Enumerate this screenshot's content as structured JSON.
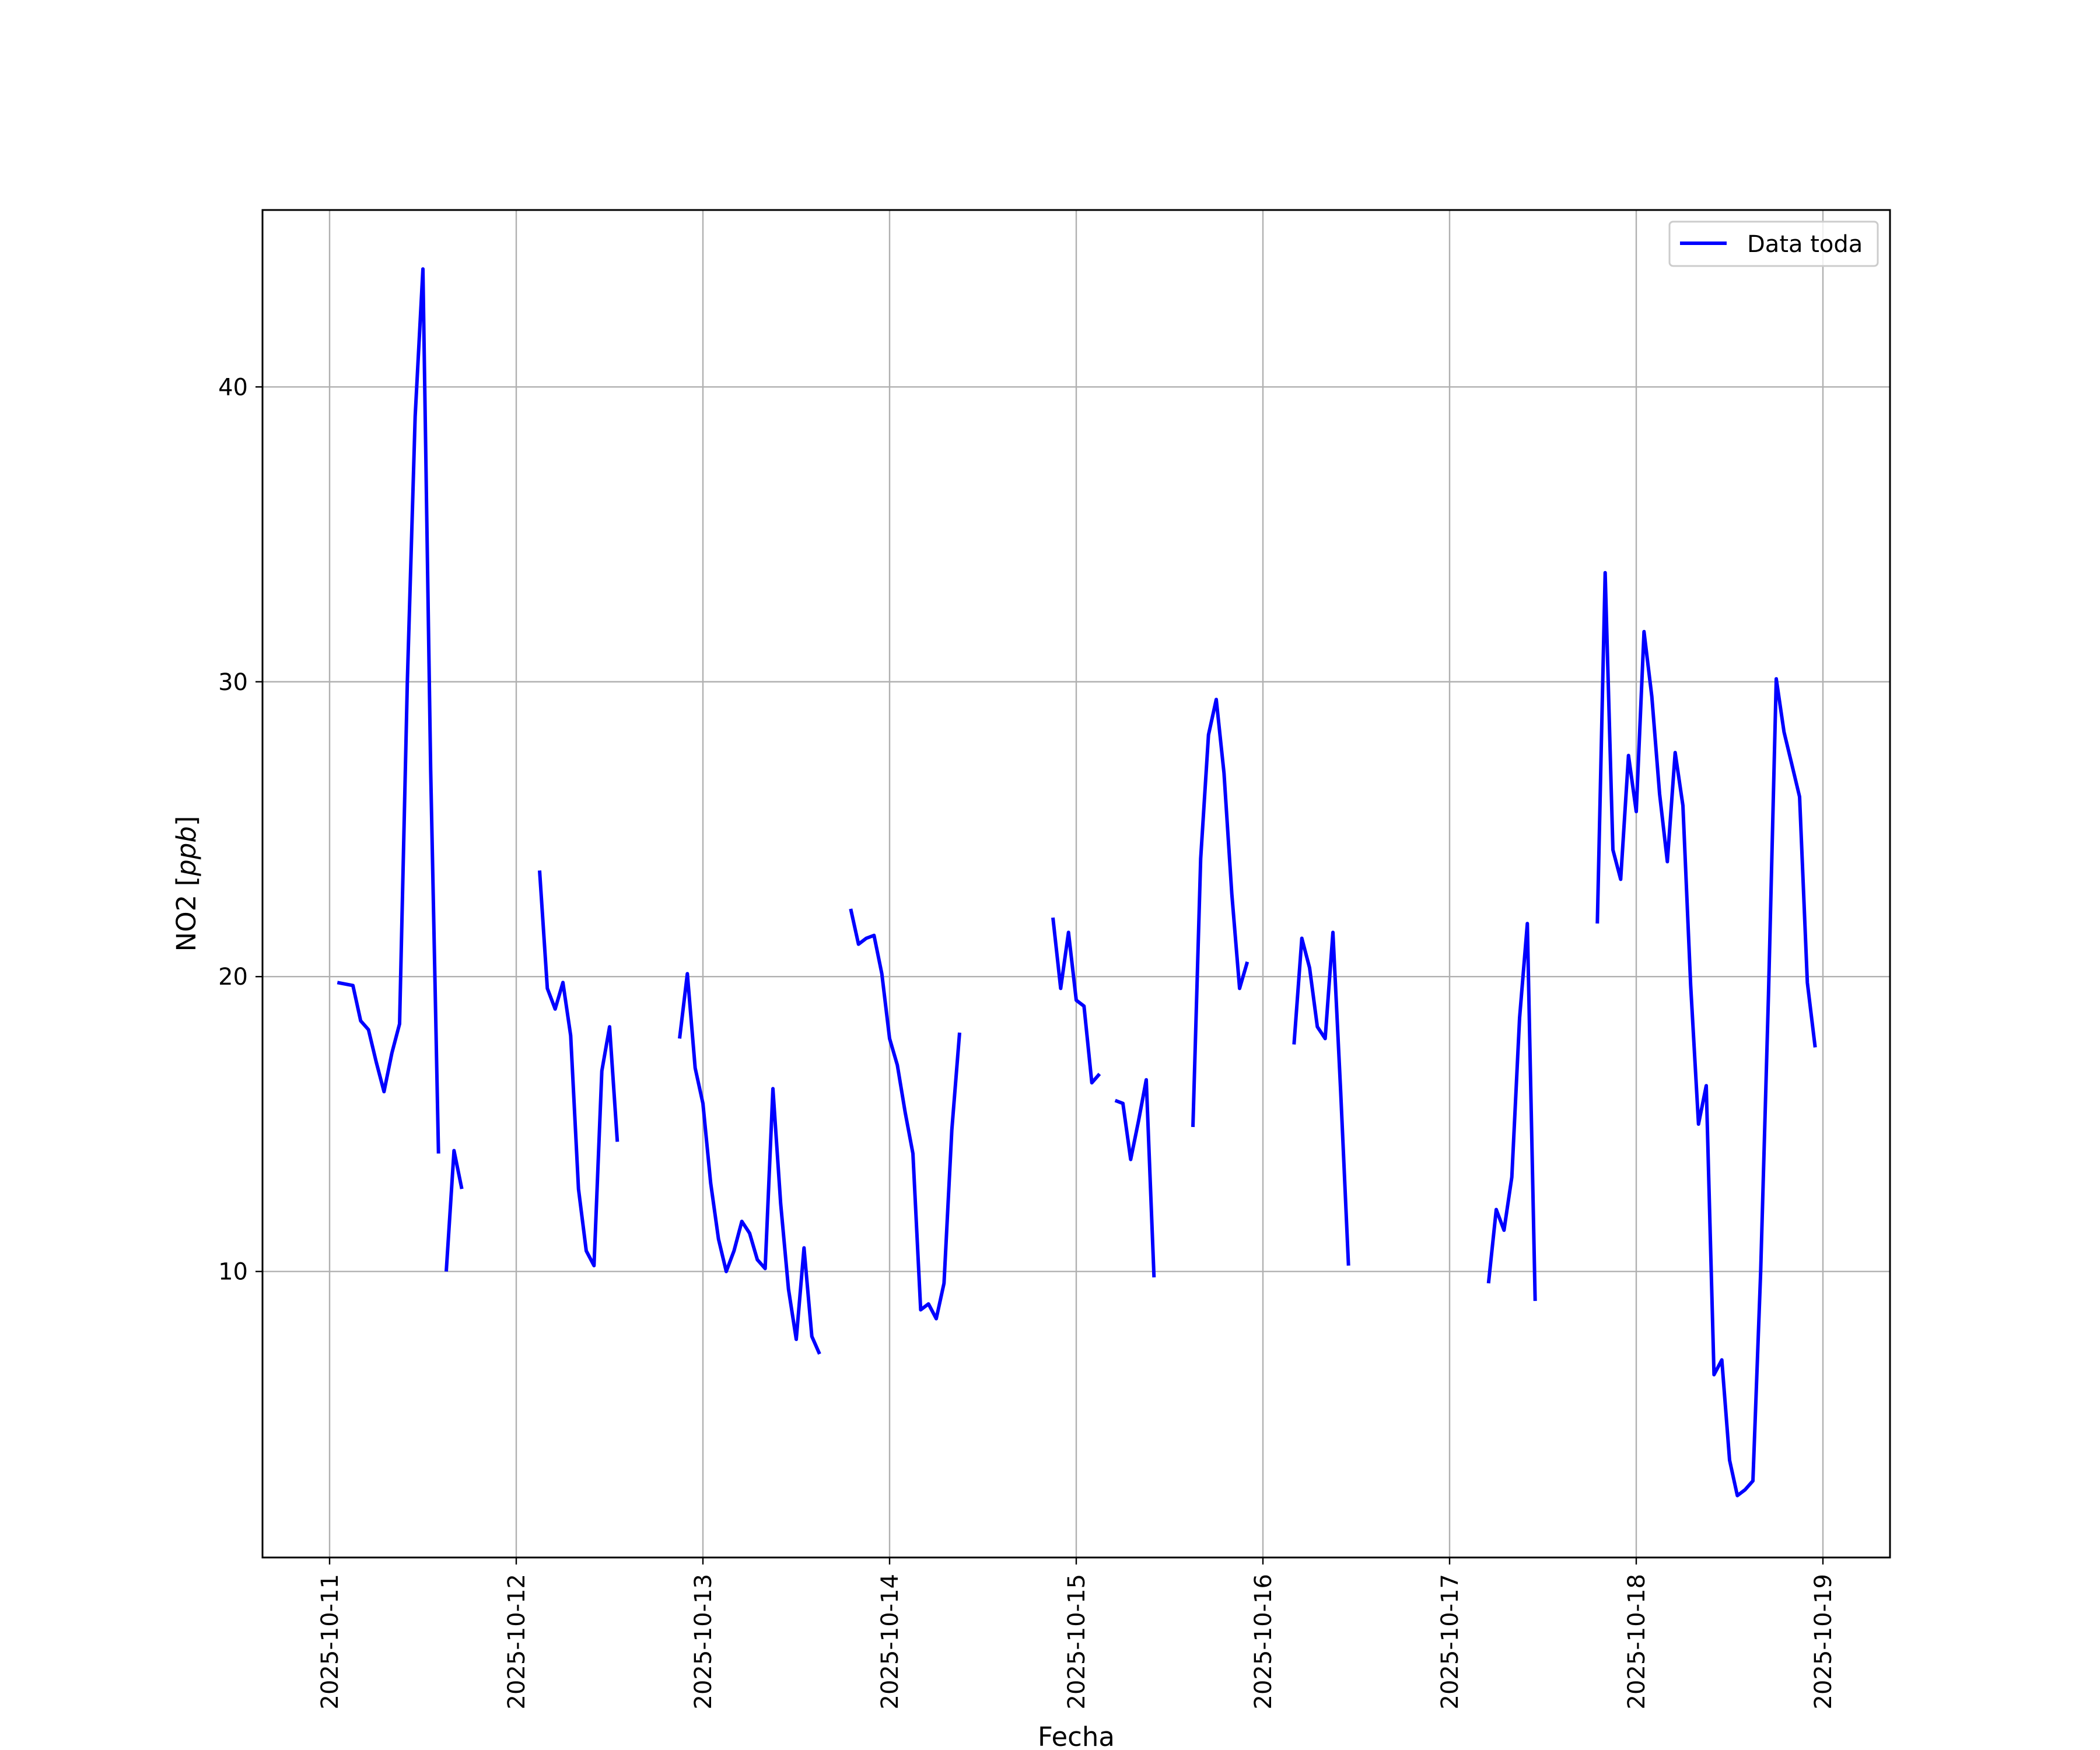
{
  "chart_data": {
    "type": "line",
    "title": "",
    "xlabel": "Fecha",
    "ylabel_text": "NO2 [",
    "ylabel_unit": "ppb",
    "ylabel_close": "]",
    "x_ticks": [
      "2025-10-11",
      "2025-10-12",
      "2025-10-13",
      "2025-10-14",
      "2025-10-15",
      "2025-10-16",
      "2025-10-17",
      "2025-10-18",
      "2025-10-19"
    ],
    "y_ticks": [
      "10",
      "20",
      "30",
      "40"
    ],
    "ylim": [
      0.3,
      46.0
    ],
    "grid": true,
    "legend_position": "top-right",
    "series": [
      {
        "name": "Data toda",
        "color": "#0000ff",
        "segments": [
          [
            [
              "2025-10-11 01:00",
              19.8
            ],
            [
              "2025-10-11 03:00",
              19.7
            ],
            [
              "2025-10-11 04:00",
              18.5
            ],
            [
              "2025-10-11 05:00",
              18.2
            ],
            [
              "2025-10-11 06:00",
              17.1
            ],
            [
              "2025-10-11 07:00",
              16.1
            ],
            [
              "2025-10-11 08:00",
              17.4
            ],
            [
              "2025-10-11 09:00",
              18.4
            ],
            [
              "2025-10-11 10:00",
              30.0
            ],
            [
              "2025-10-11 11:00",
              39.0
            ],
            [
              "2025-10-11 12:00",
              44.0
            ],
            [
              "2025-10-11 13:00",
              27.0
            ],
            [
              "2025-10-11 14:00",
              14.0
            ]
          ],
          [
            [
              "2025-10-11 15:00",
              10.0
            ],
            [
              "2025-10-11 16:00",
              14.1
            ],
            [
              "2025-10-11 17:00",
              12.8
            ]
          ],
          [
            [
              "2025-10-12 03:00",
              23.6
            ],
            [
              "2025-10-12 04:00",
              19.6
            ],
            [
              "2025-10-12 05:00",
              18.9
            ],
            [
              "2025-10-12 06:00",
              19.8
            ],
            [
              "2025-10-12 07:00",
              18.0
            ],
            [
              "2025-10-12 08:00",
              12.8
            ],
            [
              "2025-10-12 09:00",
              10.7
            ],
            [
              "2025-10-12 10:00",
              10.2
            ],
            [
              "2025-10-12 11:00",
              16.8
            ],
            [
              "2025-10-12 12:00",
              18.3
            ],
            [
              "2025-10-12 13:00",
              14.4
            ]
          ],
          [
            [
              "2025-10-12 21:00",
              17.9
            ],
            [
              "2025-10-12 22:00",
              20.1
            ],
            [
              "2025-10-12 23:00",
              16.9
            ],
            [
              "2025-10-13 00:00",
              15.7
            ],
            [
              "2025-10-13 01:00",
              13.0
            ],
            [
              "2025-10-13 02:00",
              11.1
            ],
            [
              "2025-10-13 03:00",
              10.0
            ],
            [
              "2025-10-13 04:00",
              10.7
            ],
            [
              "2025-10-13 05:00",
              11.7
            ],
            [
              "2025-10-13 06:00",
              11.3
            ],
            [
              "2025-10-13 07:00",
              10.4
            ],
            [
              "2025-10-13 08:00",
              10.1
            ],
            [
              "2025-10-13 09:00",
              16.2
            ],
            [
              "2025-10-13 10:00",
              12.3
            ],
            [
              "2025-10-13 11:00",
              9.4
            ],
            [
              "2025-10-13 12:00",
              7.7
            ],
            [
              "2025-10-13 13:00",
              10.8
            ],
            [
              "2025-10-13 14:00",
              7.8
            ],
            [
              "2025-10-13 15:00",
              7.2
            ]
          ],
          [
            [
              "2025-10-13 19:00",
              22.3
            ],
            [
              "2025-10-13 20:00",
              21.1
            ],
            [
              "2025-10-13 21:00",
              21.3
            ],
            [
              "2025-10-13 22:00",
              21.4
            ],
            [
              "2025-10-13 23:00",
              20.1
            ],
            [
              "2025-10-14 00:00",
              17.9
            ],
            [
              "2025-10-14 01:00",
              17.0
            ],
            [
              "2025-10-14 02:00",
              15.4
            ],
            [
              "2025-10-14 03:00",
              14.0
            ],
            [
              "2025-10-14 04:00",
              8.7
            ],
            [
              "2025-10-14 05:00",
              8.9
            ],
            [
              "2025-10-14 06:00",
              8.4
            ],
            [
              "2025-10-14 07:00",
              9.6
            ],
            [
              "2025-10-14 08:00",
              14.8
            ],
            [
              "2025-10-14 09:00",
              18.1
            ]
          ],
          [
            [
              "2025-10-14 21:00",
              22.0
            ],
            [
              "2025-10-14 22:00",
              19.6
            ],
            [
              "2025-10-14 23:00",
              21.5
            ],
            [
              "2025-10-15 00:00",
              19.2
            ],
            [
              "2025-10-15 01:00",
              19.0
            ],
            [
              "2025-10-15 02:00",
              16.4
            ],
            [
              "2025-10-15 03:00",
              16.7
            ]
          ],
          [
            [
              "2025-10-15 05:00",
              15.8
            ],
            [
              "2025-10-15 06:00",
              15.7
            ],
            [
              "2025-10-15 07:00",
              13.8
            ],
            [
              "2025-10-15 08:00",
              15.1
            ],
            [
              "2025-10-15 09:00",
              16.5
            ],
            [
              "2025-10-15 10:00",
              9.8
            ]
          ],
          [
            [
              "2025-10-15 15:00",
              14.9
            ],
            [
              "2025-10-15 16:00",
              24.0
            ],
            [
              "2025-10-15 17:00",
              28.2
            ],
            [
              "2025-10-15 18:00",
              29.4
            ],
            [
              "2025-10-15 19:00",
              26.9
            ],
            [
              "2025-10-15 20:00",
              22.8
            ],
            [
              "2025-10-15 21:00",
              19.6
            ],
            [
              "2025-10-15 22:00",
              20.5
            ]
          ],
          [
            [
              "2025-10-16 04:00",
              17.7
            ],
            [
              "2025-10-16 05:00",
              21.3
            ],
            [
              "2025-10-16 06:00",
              20.3
            ],
            [
              "2025-10-16 07:00",
              18.3
            ],
            [
              "2025-10-16 08:00",
              17.9
            ],
            [
              "2025-10-16 09:00",
              21.5
            ],
            [
              "2025-10-16 10:00",
              16.1
            ],
            [
              "2025-10-16 11:00",
              10.2
            ]
          ],
          [
            [
              "2025-10-17 05:00",
              9.6
            ],
            [
              "2025-10-17 06:00",
              12.1
            ],
            [
              "2025-10-17 07:00",
              11.4
            ],
            [
              "2025-10-17 08:00",
              13.2
            ],
            [
              "2025-10-17 09:00",
              18.6
            ],
            [
              "2025-10-17 10:00",
              21.8
            ],
            [
              "2025-10-17 11:00",
              9.0
            ]
          ],
          [
            [
              "2025-10-17 19:00",
              21.8
            ],
            [
              "2025-10-17 20:00",
              33.7
            ],
            [
              "2025-10-17 21:00",
              24.3
            ],
            [
              "2025-10-17 22:00",
              23.3
            ],
            [
              "2025-10-17 23:00",
              27.5
            ],
            [
              "2025-10-18 00:00",
              25.6
            ],
            [
              "2025-10-18 01:00",
              31.7
            ],
            [
              "2025-10-18 02:00",
              29.5
            ],
            [
              "2025-10-18 03:00",
              26.2
            ],
            [
              "2025-10-18 04:00",
              23.9
            ],
            [
              "2025-10-18 05:00",
              27.6
            ],
            [
              "2025-10-18 06:00",
              25.8
            ],
            [
              "2025-10-18 07:00",
              19.7
            ],
            [
              "2025-10-18 08:00",
              15.0
            ],
            [
              "2025-10-18 09:00",
              16.3
            ],
            [
              "2025-10-18 10:00",
              6.5
            ],
            [
              "2025-10-18 11:00",
              7.0
            ],
            [
              "2025-10-18 12:00",
              3.6
            ],
            [
              "2025-10-18 13:00",
              2.4
            ],
            [
              "2025-10-18 14:00",
              2.6
            ],
            [
              "2025-10-18 15:00",
              2.9
            ],
            [
              "2025-10-18 16:00",
              10.0
            ],
            [
              "2025-10-18 17:00",
              19.4
            ],
            [
              "2025-10-18 18:00",
              30.1
            ],
            [
              "2025-10-18 19:00",
              28.3
            ],
            [
              "2025-10-18 20:00",
              27.2
            ],
            [
              "2025-10-18 21:00",
              26.1
            ],
            [
              "2025-10-18 22:00",
              19.8
            ],
            [
              "2025-10-18 23:00",
              17.6
            ]
          ]
        ]
      }
    ]
  }
}
